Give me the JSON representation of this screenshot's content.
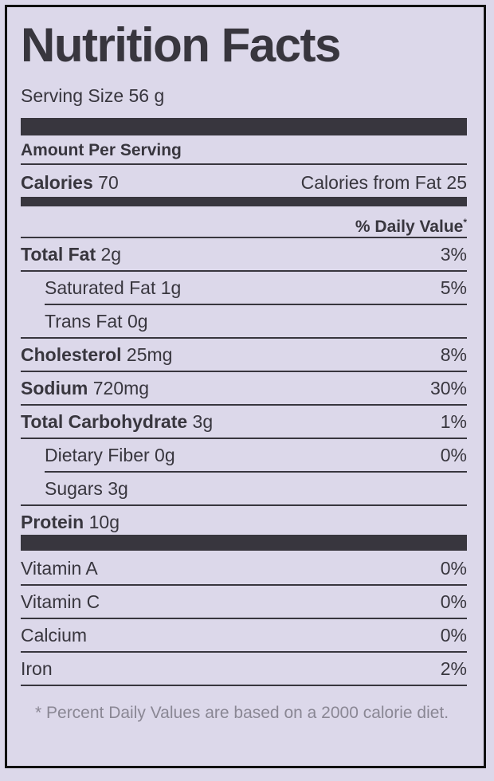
{
  "title": "Nutrition Facts",
  "serving_size": "Serving Size 56 g",
  "amount_per_serving": "Amount Per Serving",
  "calories": {
    "label": "Calories",
    "value": "70",
    "from_fat": "Calories from Fat 25"
  },
  "daily_value_header": {
    "text": "% Daily Value",
    "mark": "*"
  },
  "nutrients": [
    {
      "label": "Total Fat",
      "amount": "2g",
      "dv": "3%",
      "indent": false
    },
    {
      "label": "Saturated Fat",
      "amount": "1g",
      "dv": "5%",
      "indent": true
    },
    {
      "label": "Trans Fat",
      "amount": "0g",
      "indent": true
    },
    {
      "label": "Cholesterol",
      "amount": "25mg",
      "dv": "8%",
      "indent": false
    },
    {
      "label": "Sodium",
      "amount": "720mg",
      "dv": "30%",
      "indent": false
    },
    {
      "label": "Total Carbohydrate",
      "amount": "3g",
      "dv": "1%",
      "indent": false
    },
    {
      "label": "Dietary Fiber",
      "amount": "0g",
      "dv": "0%",
      "indent": true
    },
    {
      "label": "Sugars",
      "amount": "3g",
      "indent": true
    },
    {
      "label": "Protein",
      "amount": "10g",
      "indent": false
    }
  ],
  "vitamins": [
    {
      "label": "Vitamin A",
      "dv": "0%"
    },
    {
      "label": "Vitamin C",
      "dv": "0%"
    },
    {
      "label": "Calcium",
      "dv": "0%"
    },
    {
      "label": "Iron",
      "dv": "2%"
    }
  ],
  "footnote": "* Percent Daily Values are based on a 2000 calorie diet."
}
